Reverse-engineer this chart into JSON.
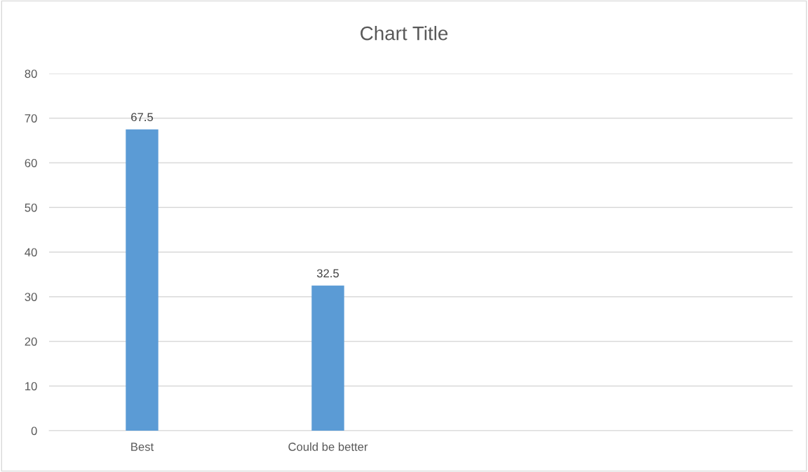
{
  "chart_data": {
    "type": "bar",
    "title": "Chart Title",
    "categories": [
      "Best",
      "Could be better",
      null,
      null
    ],
    "values": [
      67.5,
      32.5,
      null,
      null
    ],
    "color": "#5b9bd5",
    "ylim": [
      0,
      80
    ],
    "yticks": [
      0,
      10,
      20,
      30,
      40,
      50,
      60,
      70,
      80
    ],
    "grid": "y",
    "data_labels": true
  }
}
